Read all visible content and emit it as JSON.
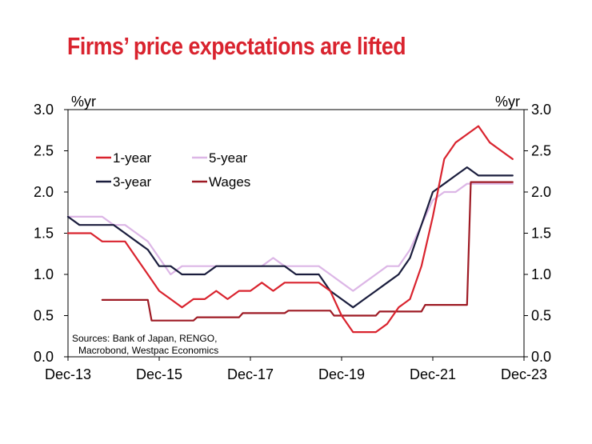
{
  "chart_data": {
    "type": "line",
    "title": "Firms’ price expectations are lifted",
    "y_unit_left": "%yr",
    "y_unit_right": "%yr",
    "ylim": [
      0,
      3
    ],
    "yticks": [
      0.0,
      0.5,
      1.0,
      1.5,
      2.0,
      2.5,
      3.0
    ],
    "ytick_labels": [
      "0.0",
      "0.5",
      "1.0",
      "1.5",
      "2.0",
      "2.5",
      "3.0"
    ],
    "xlim": [
      "2013-12",
      "2023-12"
    ],
    "xticks": [
      "2013-12",
      "2015-12",
      "2017-12",
      "2019-12",
      "2021-12",
      "2023-12"
    ],
    "xtick_labels": [
      "Dec-13",
      "Dec-15",
      "Dec-17",
      "Dec-19",
      "Dec-21",
      "Dec-23"
    ],
    "source": [
      "Sources: Bank of Japan, RENGO,",
      "Macrobond, Westpac Economics"
    ],
    "legend_position": "top-left",
    "grid": false,
    "colors": {
      "title": "#d9232e",
      "one_year": "#d9232e",
      "five_year": "#dcb6e6",
      "three_year": "#1a1d3d",
      "wages": "#9e1a24"
    },
    "series": [
      {
        "name": "1-year",
        "key": "one_year",
        "x": [
          "2013-12",
          "2014-03",
          "2014-06",
          "2014-09",
          "2014-12",
          "2015-03",
          "2015-06",
          "2015-09",
          "2015-12",
          "2016-03",
          "2016-06",
          "2016-09",
          "2016-12",
          "2017-03",
          "2017-06",
          "2017-09",
          "2017-12",
          "2018-03",
          "2018-06",
          "2018-09",
          "2018-12",
          "2019-03",
          "2019-06",
          "2019-09",
          "2019-12",
          "2020-03",
          "2020-06",
          "2020-09",
          "2020-12",
          "2021-03",
          "2021-06",
          "2021-09",
          "2021-12",
          "2022-03",
          "2022-06",
          "2022-09",
          "2022-12",
          "2023-03",
          "2023-06",
          "2023-09",
          "2023-12"
        ],
        "values": [
          1.5,
          1.5,
          1.5,
          1.4,
          1.4,
          1.4,
          1.2,
          1.0,
          0.8,
          0.7,
          0.6,
          0.7,
          0.7,
          0.8,
          0.7,
          0.8,
          0.8,
          0.9,
          0.8,
          0.9,
          0.9,
          0.9,
          0.9,
          0.8,
          0.5,
          0.3,
          0.3,
          0.3,
          0.4,
          0.6,
          0.7,
          1.1,
          1.7,
          2.4,
          2.6,
          2.7,
          2.8,
          2.6,
          2.5,
          2.4,
          null
        ]
      },
      {
        "name": "5-year",
        "key": "five_year",
        "x": [
          "2013-12",
          "2014-03",
          "2014-06",
          "2014-09",
          "2014-12",
          "2015-03",
          "2015-06",
          "2015-09",
          "2015-12",
          "2016-03",
          "2016-06",
          "2016-09",
          "2016-12",
          "2017-03",
          "2017-06",
          "2017-09",
          "2017-12",
          "2018-03",
          "2018-06",
          "2018-09",
          "2018-12",
          "2019-03",
          "2019-06",
          "2019-09",
          "2019-12",
          "2020-03",
          "2020-06",
          "2020-09",
          "2020-12",
          "2021-03",
          "2021-06",
          "2021-09",
          "2021-12",
          "2022-03",
          "2022-06",
          "2022-09",
          "2022-12",
          "2023-03",
          "2023-06",
          "2023-09",
          "2023-12"
        ],
        "values": [
          1.7,
          1.7,
          1.7,
          1.7,
          1.6,
          1.6,
          1.5,
          1.4,
          1.2,
          1.0,
          1.1,
          1.1,
          1.1,
          1.1,
          1.1,
          1.1,
          1.1,
          1.1,
          1.2,
          1.1,
          1.1,
          1.1,
          1.1,
          1.0,
          0.9,
          0.8,
          0.9,
          1.0,
          1.1,
          1.1,
          1.3,
          1.6,
          1.9,
          2.0,
          2.0,
          2.1,
          2.1,
          2.1,
          2.1,
          2.1,
          null
        ]
      },
      {
        "name": "3-year",
        "key": "three_year",
        "x": [
          "2013-12",
          "2014-03",
          "2014-06",
          "2014-09",
          "2014-12",
          "2015-03",
          "2015-06",
          "2015-09",
          "2015-12",
          "2016-03",
          "2016-06",
          "2016-09",
          "2016-12",
          "2017-03",
          "2017-06",
          "2017-09",
          "2017-12",
          "2018-03",
          "2018-06",
          "2018-09",
          "2018-12",
          "2019-03",
          "2019-06",
          "2019-09",
          "2019-12",
          "2020-03",
          "2020-06",
          "2020-09",
          "2020-12",
          "2021-03",
          "2021-06",
          "2021-09",
          "2021-12",
          "2022-03",
          "2022-06",
          "2022-09",
          "2022-12",
          "2023-03",
          "2023-06",
          "2023-09",
          "2023-12"
        ],
        "values": [
          1.7,
          1.6,
          1.6,
          1.6,
          1.6,
          1.5,
          1.4,
          1.3,
          1.1,
          1.1,
          1.0,
          1.0,
          1.0,
          1.1,
          1.1,
          1.1,
          1.1,
          1.1,
          1.1,
          1.1,
          1.0,
          1.0,
          1.0,
          0.8,
          0.7,
          0.6,
          0.7,
          0.8,
          0.9,
          1.0,
          1.2,
          1.6,
          2.0,
          2.1,
          2.2,
          2.3,
          2.2,
          2.2,
          2.2,
          2.2,
          null
        ]
      },
      {
        "name": "Wages",
        "key": "wages",
        "x": [
          "2014-09",
          "2015-09",
          "2015-10",
          "2016-09",
          "2016-10",
          "2017-09",
          "2017-10",
          "2018-09",
          "2018-10",
          "2019-09",
          "2019-10",
          "2020-09",
          "2020-10",
          "2021-09",
          "2021-10",
          "2022-09",
          "2022-10",
          "2023-09"
        ],
        "values": [
          0.69,
          0.69,
          0.44,
          0.44,
          0.48,
          0.48,
          0.53,
          0.53,
          0.56,
          0.56,
          0.5,
          0.5,
          0.55,
          0.55,
          0.63,
          0.63,
          2.12,
          2.12
        ]
      }
    ]
  }
}
